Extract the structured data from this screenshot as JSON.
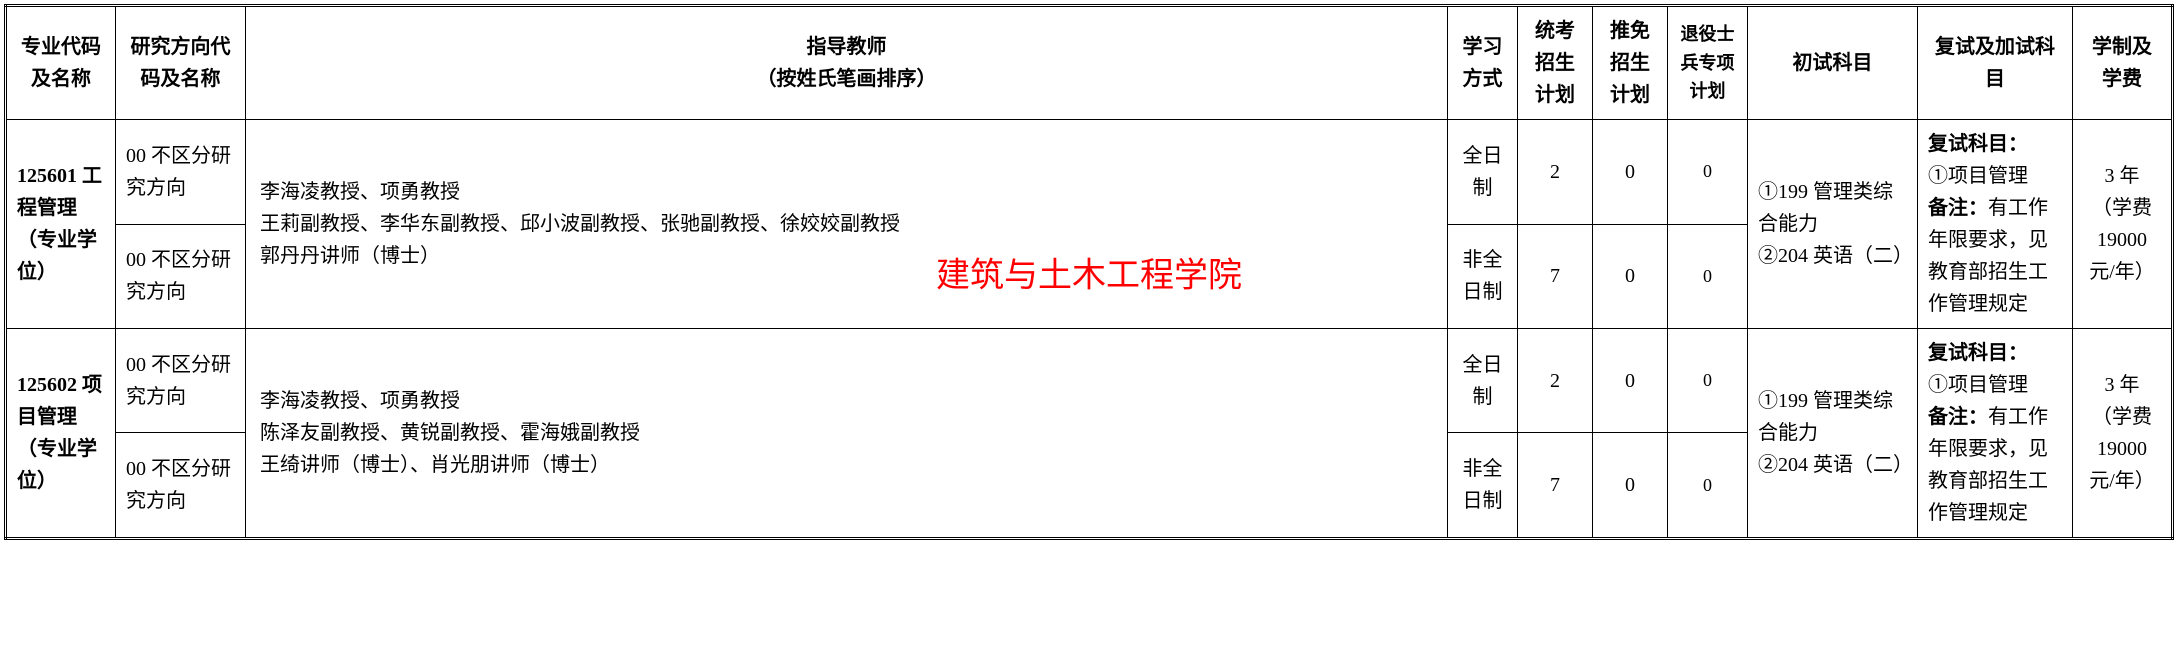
{
  "watermark": "建筑与土木工程学院",
  "headers": {
    "code": "专业代码及名称",
    "direction": "研究方向代码及名称",
    "teacher": "指导教师\n（按姓氏笔画排序）",
    "study": "学习方式",
    "plan1": "统考招生计划",
    "plan2": "推免招生计划",
    "plan3": "退役士兵专项计划",
    "exam1": "初试科目",
    "exam2": "复试及加试科目",
    "fee": "学制及学费"
  },
  "rows": [
    {
      "code": "125601 工程管理（专业学位）",
      "direction1": "00 不区分研究方向",
      "direction2": "00 不区分研究方向",
      "teacher": "李海凌教授、项勇教授\n王莉副教授、李华东副教授、邱小波副教授、张驰副教授、徐姣姣副教授\n郭丹丹讲师（博士）",
      "sub": [
        {
          "study": "全日制",
          "plan1": "2",
          "plan2": "0",
          "plan3": "0"
        },
        {
          "study": "非全日制",
          "plan1": "7",
          "plan2": "0",
          "plan3": "0"
        }
      ],
      "exam1": "①199 管理类综合能力\n②204 英语（二）",
      "exam2_title": "复试科目：",
      "exam2_item": "①项目管理",
      "exam2_note_label": "备注：",
      "exam2_note": "有工作年限要求，见教育部招生工作管理规定",
      "fee": "3 年\n（学费\n19000 元/年）"
    },
    {
      "code": "125602 项目管理（专业学位）",
      "direction1": "00 不区分研究方向",
      "direction2": "00 不区分研究方向",
      "teacher": "李海凌教授、项勇教授\n陈泽友副教授、黄锐副教授、霍海娥副教授\n王绮讲师（博士）、肖光朋讲师（博士）",
      "sub": [
        {
          "study": "全日制",
          "plan1": "2",
          "plan2": "0",
          "plan3": "0"
        },
        {
          "study": "非全日制",
          "plan1": "7",
          "plan2": "0",
          "plan3": "0"
        }
      ],
      "exam1": "①199 管理类综合能力\n②204 英语（二）",
      "exam2_title": "复试科目：",
      "exam2_item": "①项目管理",
      "exam2_note_label": "备注：",
      "exam2_note": "有工作年限要求，见教育部招生工作管理规定",
      "fee": "3 年\n（学费\n19000 元/年）"
    }
  ]
}
